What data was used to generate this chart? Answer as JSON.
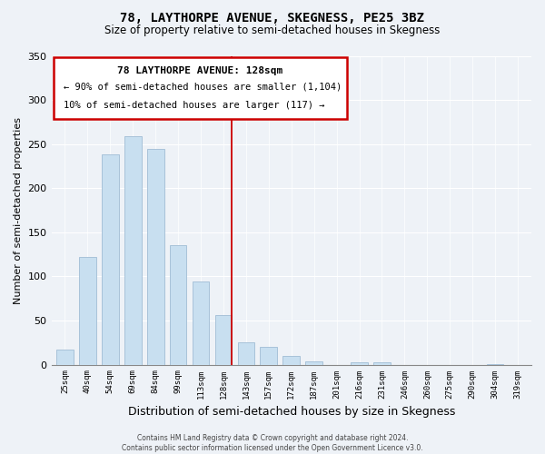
{
  "title": "78, LAYTHORPE AVENUE, SKEGNESS, PE25 3BZ",
  "subtitle": "Size of property relative to semi-detached houses in Skegness",
  "xlabel": "Distribution of semi-detached houses by size in Skegness",
  "ylabel": "Number of semi-detached properties",
  "bar_labels": [
    "25sqm",
    "40sqm",
    "54sqm",
    "69sqm",
    "84sqm",
    "99sqm",
    "113sqm",
    "128sqm",
    "143sqm",
    "157sqm",
    "172sqm",
    "187sqm",
    "201sqm",
    "216sqm",
    "231sqm",
    "246sqm",
    "260sqm",
    "275sqm",
    "290sqm",
    "304sqm",
    "319sqm"
  ],
  "bar_values": [
    17,
    122,
    238,
    259,
    244,
    135,
    94,
    56,
    25,
    20,
    10,
    4,
    0,
    3,
    3,
    0,
    0,
    0,
    0,
    1,
    0
  ],
  "bar_color": "#c8dff0",
  "vline_color": "#cc0000",
  "annotation_title": "78 LAYTHORPE AVENUE: 128sqm",
  "annotation_line1": "← 90% of semi-detached houses are smaller (1,104)",
  "annotation_line2": "10% of semi-detached houses are larger (117) →",
  "annotation_box_color": "#cc0000",
  "ylim": [
    0,
    350
  ],
  "yticks": [
    0,
    50,
    100,
    150,
    200,
    250,
    300,
    350
  ],
  "footer_line1": "Contains HM Land Registry data © Crown copyright and database right 2024.",
  "footer_line2": "Contains public sector information licensed under the Open Government Licence v3.0.",
  "background_color": "#eef2f7",
  "grid_color": "#ffffff"
}
